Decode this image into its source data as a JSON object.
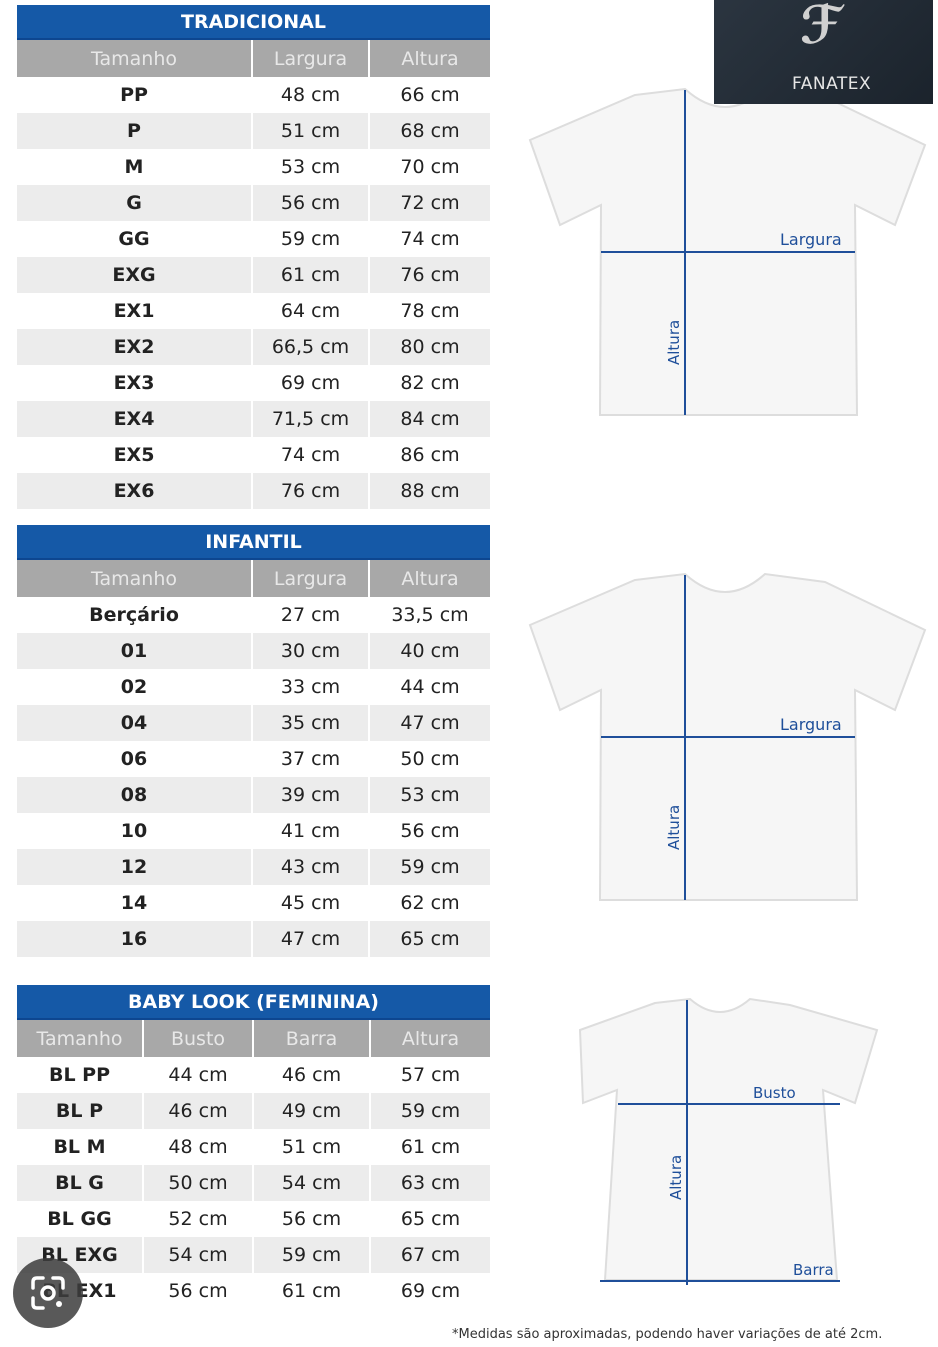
{
  "tables": [
    {
      "id": "tradicional",
      "title": "TRADICIONAL",
      "headers": [
        "Tamanho",
        "Largura",
        "Altura"
      ],
      "rows": [
        [
          "PP",
          "48 cm",
          "66 cm"
        ],
        [
          "P",
          "51 cm",
          "68 cm"
        ],
        [
          "M",
          "53 cm",
          "70 cm"
        ],
        [
          "G",
          "56 cm",
          "72 cm"
        ],
        [
          "GG",
          "59 cm",
          "74 cm"
        ],
        [
          "EXG",
          "61 cm",
          "76 cm"
        ],
        [
          "EX1",
          "64 cm",
          "78 cm"
        ],
        [
          "EX2",
          "66,5 cm",
          "80 cm"
        ],
        [
          "EX3",
          "69 cm",
          "82 cm"
        ],
        [
          "EX4",
          "71,5 cm",
          "84 cm"
        ],
        [
          "EX5",
          "74 cm",
          "86 cm"
        ],
        [
          "EX6",
          "76 cm",
          "88 cm"
        ]
      ]
    },
    {
      "id": "infantil",
      "title": "INFANTIL",
      "headers": [
        "Tamanho",
        "Largura",
        "Altura"
      ],
      "rows": [
        [
          "Berçário",
          "27 cm",
          "33,5 cm"
        ],
        [
          "01",
          "30 cm",
          "40 cm"
        ],
        [
          "02",
          "33 cm",
          "44 cm"
        ],
        [
          "04",
          "35 cm",
          "47 cm"
        ],
        [
          "06",
          "37 cm",
          "50 cm"
        ],
        [
          "08",
          "39 cm",
          "53 cm"
        ],
        [
          "10",
          "41 cm",
          "56 cm"
        ],
        [
          "12",
          "43 cm",
          "59 cm"
        ],
        [
          "14",
          "45 cm",
          "62 cm"
        ],
        [
          "16",
          "47 cm",
          "65 cm"
        ]
      ]
    },
    {
      "id": "babylook",
      "title": "BABY LOOK (FEMININA)",
      "headers": [
        "Tamanho",
        "Busto",
        "Barra",
        "Altura"
      ],
      "rows": [
        [
          "BL PP",
          "44 cm",
          "46 cm",
          "57 cm"
        ],
        [
          "BL P",
          "46 cm",
          "49 cm",
          "59 cm"
        ],
        [
          "BL M",
          "48 cm",
          "51 cm",
          "61 cm"
        ],
        [
          "BL G",
          "50 cm",
          "54 cm",
          "63 cm"
        ],
        [
          "BL GG",
          "52 cm",
          "56 cm",
          "65 cm"
        ],
        [
          "BL EXG",
          "54 cm",
          "59 cm",
          "67 cm"
        ],
        [
          "BL EX1",
          "56 cm",
          "61 cm",
          "69 cm"
        ]
      ]
    }
  ],
  "diagrams": [
    {
      "width_label": "Largura",
      "height_label": "Altura"
    },
    {
      "width_label": "Largura",
      "height_label": "Altura"
    },
    {
      "width_label": "Busto",
      "height_label": "Altura",
      "hem_label": "Barra"
    }
  ],
  "logo": {
    "text": "FANATEX"
  },
  "footnote": "*Medidas são aproximadas, podendo haver variações de até 2cm.",
  "colors": {
    "header_blue": "#1559a7",
    "column_header_gray": "#a8a8a8",
    "row_alt": "#ececec",
    "measure_line": "#1f4f9a"
  },
  "icons": [
    "google-lens-icon"
  ]
}
